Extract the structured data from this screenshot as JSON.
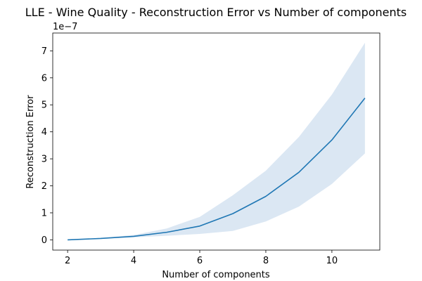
{
  "chart_data": {
    "type": "line",
    "title": "LLE - Wine Quality - Reconstruction Error vs Number of components",
    "xlabel": "Number of components",
    "ylabel": "Reconstruction Error",
    "y_scale_label": "1e−7",
    "x": [
      2,
      3,
      4,
      5,
      6,
      7,
      8,
      9,
      10,
      11
    ],
    "series": [
      {
        "values": [
          0.0,
          0.05,
          0.13,
          0.28,
          0.51,
          0.97,
          1.61,
          2.5,
          3.7,
          5.25
        ],
        "lower": [
          0.0,
          0.04,
          0.09,
          0.15,
          0.22,
          0.33,
          0.68,
          1.23,
          2.07,
          3.2
        ],
        "upper": [
          0.01,
          0.07,
          0.18,
          0.42,
          0.85,
          1.65,
          2.56,
          3.81,
          5.38,
          7.3
        ],
        "color": "#1f77b4",
        "band_color": "#dbe7f3"
      }
    ],
    "xlim": [
      1.55,
      11.45
    ],
    "ylim": [
      -0.38,
      7.66
    ],
    "xticks": [
      2,
      4,
      6,
      8,
      10
    ],
    "yticks": [
      0,
      1,
      2,
      3,
      4,
      5,
      6,
      7
    ],
    "grid": false
  }
}
